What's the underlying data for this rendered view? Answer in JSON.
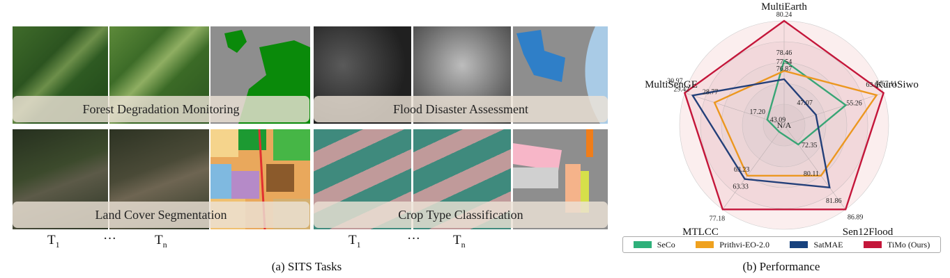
{
  "panel_a": {
    "tasks": [
      {
        "label": "Forest Degradation Monitoring"
      },
      {
        "label": "Flood Disaster Assessment"
      },
      {
        "label": "Land Cover Segmentation"
      },
      {
        "label": "Crop Type Classification"
      }
    ],
    "time_labels": {
      "t": "T",
      "sub1": "1",
      "subn": "n",
      "ellipsis": "···"
    },
    "caption": "(a) SITS Tasks"
  },
  "panel_b": {
    "caption": "(b) Performance"
  },
  "colors": {
    "SeCo": "#2eb07a",
    "Prithvi-EO-2.0": "#efa11e",
    "SatMAE": "#17427e",
    "TiMo (Ours)": "#c4163a"
  },
  "chart_data": {
    "type": "radar",
    "axes": [
      "MultiEarth",
      "KuroSiwo",
      "Sen12Flood",
      "MTLCC",
      "MultiSenGE"
    ],
    "series": [
      {
        "name": "SeCo",
        "labels": [
          "78.46",
          "55.26",
          "72.35",
          "43.09",
          "17.20"
        ],
        "fractions": [
          0.62,
          0.62,
          0.23,
          0.08,
          0.17
        ]
      },
      {
        "name": "Prithvi-EO-2.0",
        "labels": [
          "77.54",
          "63.67",
          "80.11",
          "63.23",
          "28.77"
        ],
        "fractions": [
          0.52,
          0.93,
          0.6,
          0.6,
          0.7
        ]
      },
      {
        "name": "SatMAE",
        "labels": [
          "76.87",
          "47.07",
          "81.86",
          "63.33",
          "29.42"
        ],
        "fractions": [
          0.44,
          0.32,
          0.74,
          0.64,
          0.92
        ]
      },
      {
        "name": "TiMo (Ours)",
        "labels": [
          "80.24",
          "67.11",
          "86.89",
          "77.18",
          "30.97"
        ],
        "fractions": [
          1.0,
          1.0,
          1.0,
          1.0,
          1.0
        ]
      }
    ],
    "center_label": "N/A",
    "legend": "bottom"
  }
}
